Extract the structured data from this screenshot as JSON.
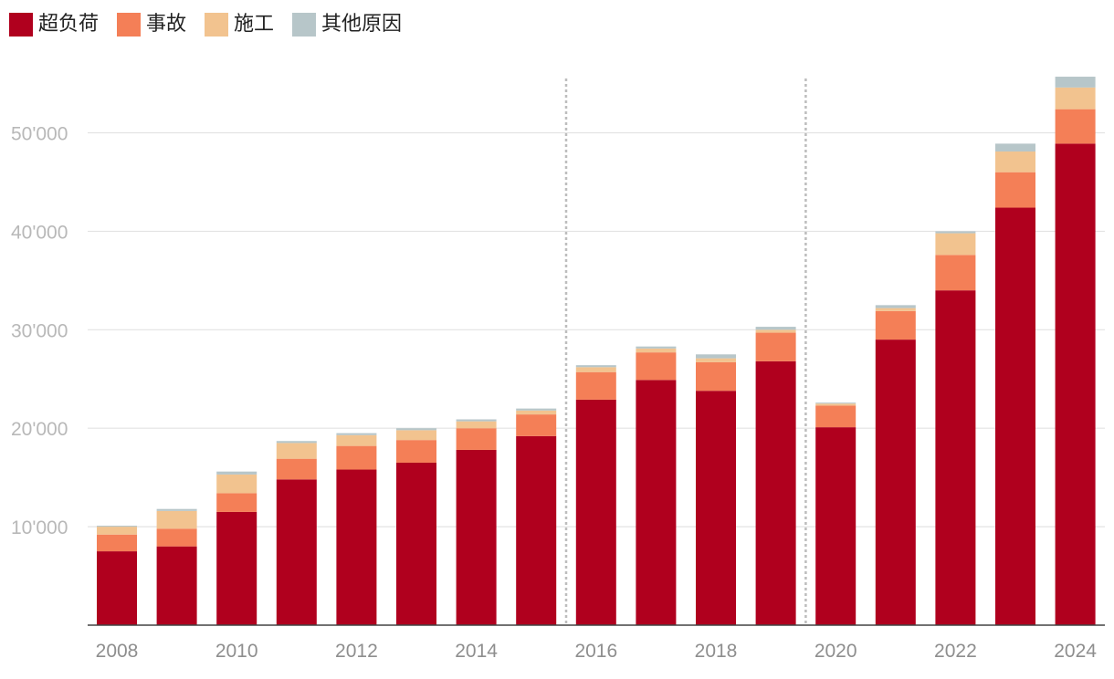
{
  "chart_data": {
    "type": "bar",
    "stacked": true,
    "title": "",
    "xlabel": "",
    "ylabel": "",
    "x": [
      2008,
      2009,
      2010,
      2011,
      2012,
      2013,
      2014,
      2015,
      2016,
      2017,
      2018,
      2019,
      2020,
      2021,
      2022,
      2023,
      2024
    ],
    "x_tick_labels": [
      "2008",
      "2010",
      "2012",
      "2014",
      "2016",
      "2018",
      "2020",
      "2022",
      "2024"
    ],
    "ylim": [
      0,
      57000
    ],
    "y_ticks": [
      10000,
      20000,
      30000,
      40000,
      50000
    ],
    "y_tick_labels": [
      "10'000",
      "20'000",
      "30'000",
      "40'000",
      "50'000"
    ],
    "grid": true,
    "legend_position": "top-left",
    "vertical_dotted_lines_between": [
      [
        2015,
        2016
      ],
      [
        2019,
        2020
      ]
    ],
    "series": [
      {
        "name": "超负荷",
        "color": "#b0001e",
        "values": [
          7500,
          8000,
          11500,
          14800,
          15800,
          16500,
          17800,
          19200,
          22900,
          24900,
          23800,
          26800,
          20100,
          29000,
          34000,
          42400,
          48900
        ]
      },
      {
        "name": "事故",
        "color": "#f47f57",
        "values": [
          1700,
          1800,
          1900,
          2100,
          2400,
          2300,
          2200,
          2200,
          2800,
          2800,
          2900,
          2900,
          2200,
          2900,
          3600,
          3600,
          3500
        ]
      },
      {
        "name": "施工",
        "color": "#f2c38f",
        "values": [
          800,
          1800,
          1900,
          1600,
          1100,
          1000,
          700,
          400,
          500,
          400,
          400,
          300,
          200,
          300,
          2200,
          2100,
          2200
        ]
      },
      {
        "name": "其他原因",
        "color": "#b7c6c9",
        "values": [
          100,
          200,
          300,
          200,
          200,
          200,
          200,
          200,
          200,
          200,
          400,
          300,
          100,
          300,
          200,
          800,
          1100
        ]
      }
    ]
  }
}
